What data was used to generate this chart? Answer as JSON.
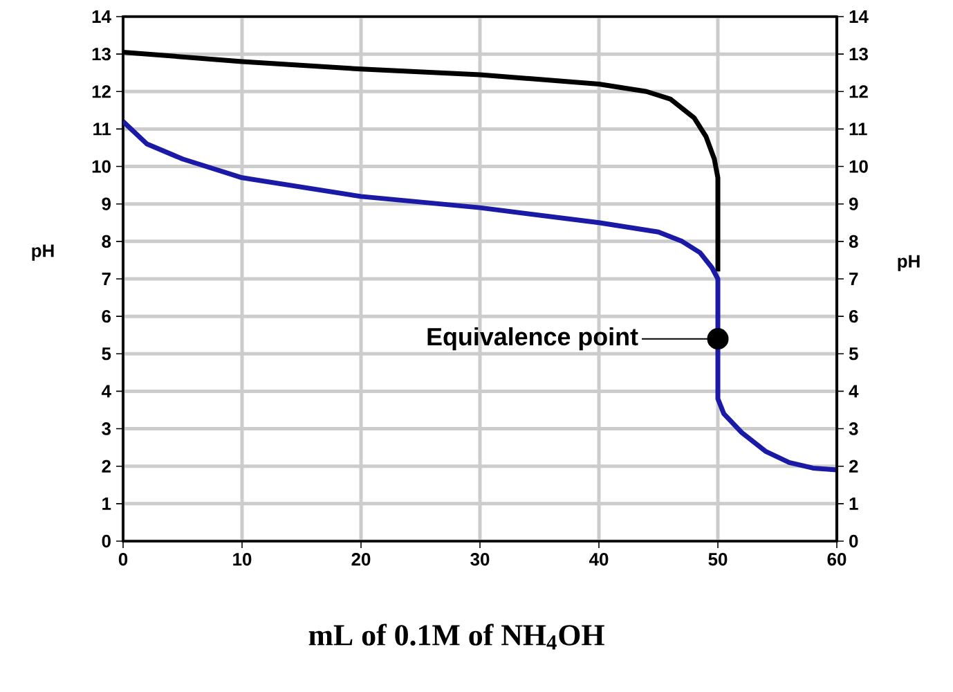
{
  "chart_data": {
    "type": "line",
    "xlabel": "mL of 0.1M of NH$_{4}$OH",
    "ylabel": "pH",
    "y2label": "pH",
    "xlim": [
      0,
      60
    ],
    "xticks": [
      0,
      10,
      20,
      30,
      40,
      50,
      60
    ],
    "ylim": [
      0,
      14
    ],
    "yticks": [
      0,
      1,
      2,
      3,
      4,
      5,
      6,
      7,
      8,
      9,
      10,
      11,
      12,
      13,
      14
    ],
    "y2lim": [
      0,
      14
    ],
    "y2ticks": [
      0,
      1,
      2,
      3,
      4,
      5,
      6,
      7,
      8,
      9,
      10,
      11,
      12,
      13,
      14
    ],
    "grid": true,
    "line_style": "solid",
    "annotations": [
      "Equivalence point"
    ],
    "series": [
      {
        "color": "#000000",
        "x": [
          0,
          10,
          20,
          30,
          40,
          44,
          46,
          48,
          49,
          49.7,
          50,
          50
        ],
        "values": [
          13.05,
          12.8,
          12.6,
          12.45,
          12.2,
          12.0,
          11.8,
          11.3,
          10.8,
          10.2,
          9.7,
          7.2
        ]
      },
      {
        "type": "scatter",
        "color": "#000000",
        "x": [
          50
        ],
        "values": [
          5.4
        ]
      },
      {
        "color": "#1a1aa6",
        "x": [
          0,
          2,
          5,
          10,
          20,
          30,
          40,
          45,
          47,
          48.5,
          49.5,
          50,
          50,
          50.5,
          52,
          54,
          56,
          58,
          60
        ],
        "values": [
          11.2,
          10.6,
          10.2,
          9.7,
          9.2,
          8.9,
          8.5,
          8.25,
          8.0,
          7.7,
          7.3,
          7.0,
          3.8,
          3.4,
          2.9,
          2.4,
          2.1,
          1.95,
          1.9
        ]
      }
    ]
  }
}
